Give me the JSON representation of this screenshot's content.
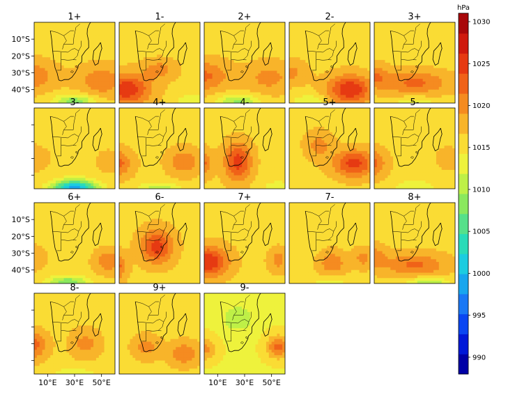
{
  "panels": [
    "1+",
    "1-",
    "2+",
    "2-",
    "3+",
    "3-",
    "4+",
    "4-",
    "5+",
    "5-",
    "6+",
    "6-",
    "7+",
    "7-",
    "8+",
    "8-",
    "9+",
    "9-"
  ],
  "lat_labels": [
    "10°S",
    "20°S",
    "30°S",
    "40°S"
  ],
  "lon_labels": [
    "10°E",
    "30°E",
    "50°E"
  ],
  "colorbar": {
    "unit": "hPa",
    "ticks": [
      "1030",
      "1025",
      "1020",
      "1015",
      "1010",
      "1005",
      "1000",
      "995",
      "990"
    ],
    "colors": [
      "#0000a6",
      "#0018d8",
      "#0a46f2",
      "#1a78f5",
      "#18a6ee",
      "#1ccce0",
      "#2adbb8",
      "#56e08a",
      "#8ae85e",
      "#bef047",
      "#eef23c",
      "#fadc34",
      "#f8b42a",
      "#f58b20",
      "#f06218",
      "#e63a12",
      "#cf1a0e",
      "#a8080a"
    ]
  },
  "chart_data": {
    "type": "heatmap",
    "title": "",
    "variable_unit": "hPa",
    "colorbar_range": [
      988,
      1031
    ],
    "colorbar_ticks": [
      990,
      995,
      1000,
      1005,
      1010,
      1015,
      1020,
      1025,
      1030
    ],
    "region": {
      "lon": [
        0,
        60
      ],
      "lat": [
        -48,
        0
      ]
    },
    "panels": [
      {
        "name": "1+",
        "background": 1016,
        "highs": [
          [
            -2,
            -32,
            3.6,
            1.8,
            1021
          ],
          [
            50,
            -35,
            3.4,
            1.8,
            1021
          ]
        ],
        "lows": [
          [
            30,
            -47,
            3.0,
            0.8,
            1008
          ]
        ]
      },
      {
        "name": "1-",
        "background": 1016,
        "highs": [
          [
            5,
            -40,
            3.6,
            1.8,
            1026
          ],
          [
            30,
            -28,
            2.5,
            1.2,
            1020
          ]
        ],
        "lows": [
          [
            55,
            -47,
            2.5,
            0.8,
            1012
          ]
        ]
      },
      {
        "name": "2+",
        "background": 1016,
        "highs": [
          [
            0,
            -32,
            3.6,
            1.8,
            1022
          ],
          [
            48,
            -33,
            3.5,
            1.8,
            1020
          ]
        ],
        "lows": [
          [
            25,
            -47,
            3.0,
            0.8,
            1009
          ]
        ]
      },
      {
        "name": "2-",
        "background": 1016,
        "highs": [
          [
            45,
            -40,
            3.3,
            1.7,
            1026
          ],
          [
            0,
            -30,
            2.5,
            1.4,
            1020
          ]
        ],
        "lows": [
          [
            15,
            -47,
            2.5,
            0.8,
            1012
          ]
        ]
      },
      {
        "name": "3+",
        "background": 1016,
        "highs": [
          [
            30,
            -36,
            5.0,
            1.4,
            1022
          ],
          [
            0,
            -32,
            2.0,
            1.4,
            1021
          ]
        ],
        "lows": [
          [
            30,
            -48,
            3.0,
            0.7,
            1012
          ]
        ]
      },
      {
        "name": "3-",
        "background": 1016,
        "highs": [
          [
            -2,
            -30,
            2.4,
            1.4,
            1019
          ],
          [
            55,
            -32,
            1.8,
            1.4,
            1018
          ]
        ],
        "lows": [
          [
            30,
            -48,
            3.2,
            1.0,
            998
          ]
        ]
      },
      {
        "name": "4+",
        "background": 1016,
        "highs": [
          [
            -3,
            -33,
            2.4,
            1.6,
            1023
          ],
          [
            48,
            -32,
            2.4,
            1.6,
            1021
          ]
        ],
        "lows": [
          [
            30,
            -48,
            3.0,
            0.7,
            1010
          ]
        ]
      },
      {
        "name": "4-",
        "background": 1016,
        "highs": [
          [
            25,
            -32,
            2.0,
            2.2,
            1025
          ],
          [
            -3,
            -33,
            1.6,
            1.6,
            1023
          ]
        ],
        "lows": [
          [
            55,
            -47,
            2.0,
            0.7,
            1012
          ]
        ]
      },
      {
        "name": "5+",
        "background": 1016,
        "highs": [
          [
            48,
            -33,
            3.0,
            1.6,
            1025
          ],
          [
            22,
            -22,
            2.0,
            1.6,
            1020
          ]
        ],
        "lows": []
      },
      {
        "name": "5-",
        "background": 1016,
        "highs": [
          [
            -3,
            -33,
            2.2,
            1.6,
            1023
          ],
          [
            55,
            -30,
            1.8,
            1.4,
            1018
          ]
        ],
        "lows": [
          [
            30,
            -47,
            3.0,
            0.8,
            1012
          ]
        ]
      },
      {
        "name": "6+",
        "background": 1016,
        "highs": [
          [
            55,
            -35,
            2.0,
            1.4,
            1021
          ],
          [
            -2,
            -33,
            2.0,
            1.4,
            1019
          ]
        ],
        "lows": [
          [
            25,
            -47,
            3.0,
            0.7,
            1008
          ]
        ]
      },
      {
        "name": "6-",
        "background": 1016,
        "highs": [
          [
            28,
            -26,
            2.4,
            2.0,
            1025
          ],
          [
            -3,
            -38,
            1.6,
            1.6,
            1023
          ]
        ],
        "lows": []
      },
      {
        "name": "7+",
        "background": 1016,
        "highs": [
          [
            3,
            -35,
            3.0,
            1.8,
            1026
          ],
          [
            55,
            -34,
            1.5,
            1.4,
            1020
          ]
        ],
        "lows": []
      },
      {
        "name": "7-",
        "background": 1016,
        "highs": [
          [
            32,
            -36,
            2.0,
            1.4,
            1021
          ],
          [
            55,
            -33,
            1.5,
            1.2,
            1020
          ]
        ],
        "lows": [
          [
            30,
            -48,
            3.0,
            0.7,
            1013
          ]
        ]
      },
      {
        "name": "8+",
        "background": 1016,
        "highs": [
          [
            30,
            -37,
            4.5,
            1.4,
            1022
          ],
          [
            0,
            -32,
            1.8,
            1.4,
            1020
          ]
        ],
        "lows": [
          [
            40,
            -48,
            3.0,
            0.7,
            1009
          ]
        ]
      },
      {
        "name": "8-",
        "background": 1016,
        "highs": [
          [
            -2,
            -31,
            2.2,
            1.6,
            1023
          ],
          [
            38,
            -30,
            2.2,
            1.6,
            1020
          ]
        ],
        "lows": [
          [
            30,
            -48,
            3.0,
            0.7,
            1012
          ]
        ]
      },
      {
        "name": "9+",
        "background": 1016,
        "highs": [
          [
            48,
            -36,
            2.2,
            1.4,
            1021
          ],
          [
            20,
            -32,
            2.0,
            1.4,
            1020
          ]
        ],
        "lows": []
      },
      {
        "name": "9-",
        "background": 1014,
        "highs": [
          [
            55,
            -32,
            1.8,
            1.4,
            1022
          ],
          [
            0,
            -33,
            1.8,
            1.4,
            1020
          ]
        ],
        "lows": [
          [
            25,
            -15,
            2.5,
            1.6,
            1010
          ]
        ]
      }
    ]
  }
}
